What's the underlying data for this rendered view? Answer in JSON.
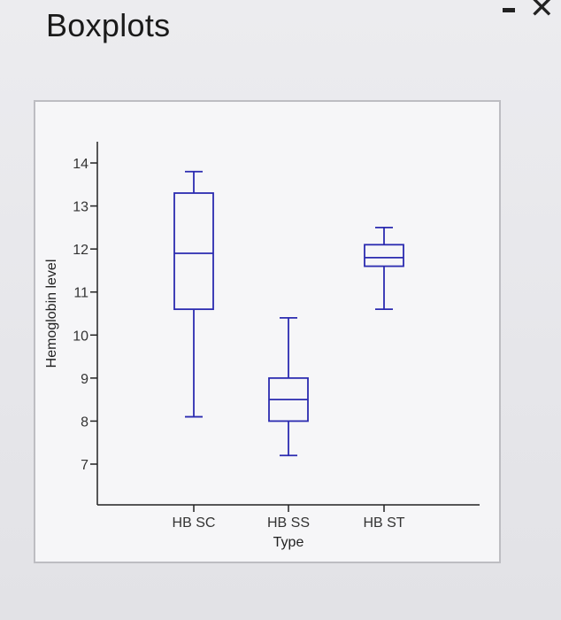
{
  "window": {
    "title": "Boxplots",
    "minimize_icon": "minimize-icon",
    "close_icon": "close-icon",
    "close_glyph": "✕"
  },
  "colors": {
    "box": "#2b2bb0",
    "axis": "#222222",
    "panel_bg": "#f6f6f8"
  },
  "chart_data": {
    "type": "boxplot",
    "title": "",
    "xlabel": "Type",
    "ylabel": "Hemoglobin level",
    "ylim": [
      6.2,
      14.6
    ],
    "yticks": [
      7,
      8,
      9,
      10,
      11,
      12,
      13,
      14
    ],
    "categories": [
      "HB SC",
      "HB SS",
      "HB ST"
    ],
    "boxes": [
      {
        "category": "HB SC",
        "whisker_low": 8.1,
        "q1": 10.6,
        "median": 11.9,
        "q3": 13.3,
        "whisker_high": 13.8
      },
      {
        "category": "HB SS",
        "whisker_low": 7.2,
        "q1": 8.0,
        "median": 8.5,
        "q3": 9.0,
        "whisker_high": 10.4
      },
      {
        "category": "HB ST",
        "whisker_low": 10.6,
        "q1": 11.6,
        "median": 11.8,
        "q3": 12.1,
        "whisker_high": 12.5
      }
    ]
  }
}
